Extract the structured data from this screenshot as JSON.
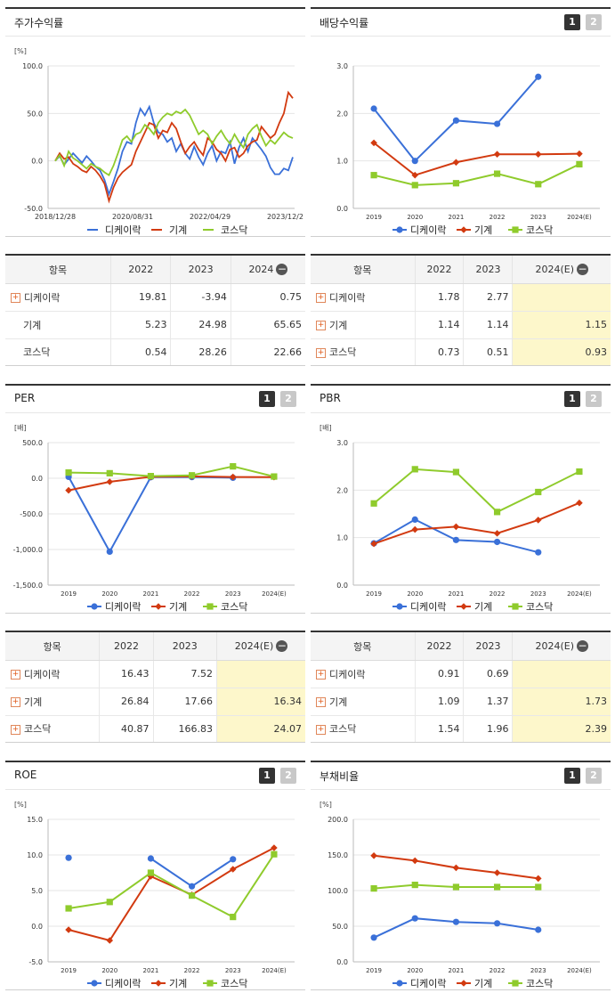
{
  "legend": [
    "디케이락",
    "기계",
    "코스닥"
  ],
  "colors": {
    "s0": "#3a70d8",
    "s1": "#d23a10",
    "s2": "#8fcb2c"
  },
  "panels": {
    "stock": {
      "title": "주가수익률"
    },
    "dividend": {
      "title": "배당수익률",
      "btn1": "1",
      "btn2": "2"
    },
    "per": {
      "title": "PER",
      "btn1": "1",
      "btn2": "2"
    },
    "pbr": {
      "title": "PBR",
      "btn1": "1",
      "btn2": "2"
    },
    "roe": {
      "title": "ROE",
      "btn1": "1",
      "btn2": "2"
    },
    "debt": {
      "title": "부채비율",
      "btn1": "1",
      "btn2": "2"
    }
  },
  "tables": {
    "stock": {
      "headers": [
        "항목",
        "2022",
        "2023",
        "2024"
      ],
      "rows": [
        {
          "name": "디케이락",
          "v": [
            "19.81",
            "-3.94",
            "0.75"
          ]
        },
        {
          "name": "기계",
          "v": [
            "5.23",
            "24.98",
            "65.65"
          ]
        },
        {
          "name": "코스닥",
          "v": [
            "0.54",
            "28.26",
            "22.66"
          ]
        }
      ]
    },
    "dividend": {
      "headers": [
        "항목",
        "2022",
        "2023",
        "2024(E)"
      ],
      "rows": [
        {
          "name": "디케이락",
          "v": [
            "1.78",
            "2.77",
            ""
          ]
        },
        {
          "name": "기계",
          "v": [
            "1.14",
            "1.14",
            "1.15"
          ]
        },
        {
          "name": "코스닥",
          "v": [
            "0.73",
            "0.51",
            "0.93"
          ]
        }
      ]
    },
    "per": {
      "headers": [
        "항목",
        "2022",
        "2023",
        "2024(E)"
      ],
      "rows": [
        {
          "name": "디케이락",
          "v": [
            "16.43",
            "7.52",
            ""
          ]
        },
        {
          "name": "기계",
          "v": [
            "26.84",
            "17.66",
            "16.34"
          ]
        },
        {
          "name": "코스닥",
          "v": [
            "40.87",
            "166.83",
            "24.07"
          ]
        }
      ]
    },
    "pbr": {
      "headers": [
        "항목",
        "2022",
        "2023",
        "2024(E)"
      ],
      "rows": [
        {
          "name": "디케이락",
          "v": [
            "0.91",
            "0.69",
            ""
          ]
        },
        {
          "name": "기계",
          "v": [
            "1.09",
            "1.37",
            "1.73"
          ]
        },
        {
          "name": "코스닥",
          "v": [
            "1.54",
            "1.96",
            "2.39"
          ]
        }
      ]
    }
  },
  "chart_data": [
    {
      "id": "stock",
      "type": "line",
      "unit": "[%]",
      "x_ticks": [
        "2018/12/28",
        "2020/08/31",
        "2022/04/29",
        "2023/12/28"
      ],
      "ylim": [
        -50,
        100
      ],
      "yticks": [
        "100.0",
        "50.0",
        "0.0",
        "-50.0"
      ],
      "series": [
        {
          "name": "디케이락",
          "values": [
            0,
            5,
            -4,
            2,
            8,
            3,
            -2,
            5,
            0,
            -6,
            -10,
            -20,
            -35,
            -22,
            -8,
            10,
            20,
            18,
            40,
            55,
            48,
            57,
            40,
            30,
            28,
            20,
            24,
            10,
            18,
            8,
            2,
            15,
            4,
            -4,
            8,
            16,
            0,
            10,
            8,
            20,
            -3,
            14,
            24,
            10,
            24,
            18,
            12,
            5,
            -7,
            -14,
            -14,
            -8,
            -10,
            4
          ]
        },
        {
          "name": "기계",
          "values": [
            0,
            8,
            2,
            4,
            -3,
            -6,
            -10,
            -12,
            -6,
            -10,
            -16,
            -24,
            -42,
            -28,
            -18,
            -12,
            -8,
            -4,
            10,
            20,
            30,
            40,
            38,
            24,
            32,
            30,
            40,
            34,
            20,
            8,
            15,
            20,
            12,
            6,
            24,
            20,
            12,
            8,
            0,
            12,
            14,
            4,
            8,
            16,
            20,
            22,
            36,
            30,
            24,
            28,
            40,
            50,
            72,
            66
          ]
        },
        {
          "name": "코스닥",
          "values": [
            0,
            6,
            -5,
            10,
            3,
            0,
            -4,
            -8,
            -3,
            -6,
            -8,
            -12,
            -15,
            -5,
            8,
            22,
            26,
            20,
            28,
            30,
            38,
            34,
            28,
            40,
            46,
            50,
            48,
            52,
            50,
            54,
            48,
            38,
            28,
            32,
            28,
            18,
            26,
            32,
            24,
            18,
            28,
            20,
            14,
            28,
            34,
            38,
            26,
            16,
            22,
            18,
            24,
            30,
            26,
            24
          ]
        }
      ]
    },
    {
      "id": "dividend",
      "type": "line",
      "unit": "",
      "categories": [
        "2019",
        "2020",
        "2021",
        "2022",
        "2023",
        "2024(E)"
      ],
      "ylim": [
        0,
        3
      ],
      "yticks": [
        "3.0",
        "2.0",
        "1.0",
        "0.0"
      ],
      "series": [
        {
          "name": "디케이락",
          "values": [
            2.1,
            1.0,
            1.85,
            1.78,
            2.77,
            null
          ]
        },
        {
          "name": "기계",
          "values": [
            1.38,
            0.7,
            0.97,
            1.14,
            1.14,
            1.15
          ]
        },
        {
          "name": "코스닥",
          "values": [
            0.7,
            0.49,
            0.53,
            0.73,
            0.51,
            0.93
          ]
        }
      ]
    },
    {
      "id": "per",
      "type": "line",
      "unit": "[배]",
      "categories": [
        "2019",
        "2020",
        "2021",
        "2022",
        "2023",
        "2024(E)"
      ],
      "ylim": [
        -1500,
        500
      ],
      "yticks": [
        "500.0",
        "0.0",
        "-500.0",
        "-1,000.0",
        "-1,500.0"
      ],
      "series": [
        {
          "name": "디케이락",
          "values": [
            20,
            -1030,
            15,
            16.43,
            7.52,
            null
          ]
        },
        {
          "name": "기계",
          "values": [
            -170,
            -50,
            20,
            26.84,
            17.66,
            16.34
          ]
        },
        {
          "name": "코스닥",
          "values": [
            80,
            70,
            30,
            40.87,
            166.83,
            24.07
          ]
        }
      ]
    },
    {
      "id": "pbr",
      "type": "line",
      "unit": "[배]",
      "categories": [
        "2019",
        "2020",
        "2021",
        "2022",
        "2023",
        "2024(E)"
      ],
      "ylim": [
        0,
        3
      ],
      "yticks": [
        "3.0",
        "2.0",
        "1.0",
        "0.0"
      ],
      "series": [
        {
          "name": "디케이락",
          "values": [
            0.88,
            1.38,
            0.95,
            0.91,
            0.69,
            null
          ]
        },
        {
          "name": "기계",
          "values": [
            0.87,
            1.17,
            1.23,
            1.09,
            1.37,
            1.73
          ]
        },
        {
          "name": "코스닥",
          "values": [
            1.72,
            2.44,
            2.38,
            1.54,
            1.96,
            2.39
          ]
        }
      ]
    },
    {
      "id": "roe",
      "type": "line",
      "unit": "[%]",
      "categories": [
        "2019",
        "2020",
        "2021",
        "2022",
        "2023",
        "2024(E)"
      ],
      "ylim": [
        -5,
        15
      ],
      "yticks": [
        "15.0",
        "10.0",
        "5.0",
        "0.0",
        "-5.0"
      ],
      "series": [
        {
          "name": "디케이락",
          "values": [
            9.6,
            null,
            9.5,
            5.6,
            9.4,
            null
          ]
        },
        {
          "name": "기계",
          "values": [
            -0.5,
            -2.0,
            7.0,
            4.4,
            8.0,
            11.0
          ]
        },
        {
          "name": "코스닥",
          "values": [
            2.5,
            3.4,
            7.5,
            4.3,
            1.3,
            10.1
          ]
        }
      ]
    },
    {
      "id": "debt",
      "type": "line",
      "unit": "[%]",
      "categories": [
        "2019",
        "2020",
        "2021",
        "2022",
        "2023",
        "2024(E)"
      ],
      "ylim": [
        0,
        200
      ],
      "yticks": [
        "200.0",
        "150.0",
        "100.0",
        "50.0",
        "0.0"
      ],
      "series": [
        {
          "name": "디케이락",
          "values": [
            34,
            61,
            56,
            54,
            45,
            null
          ]
        },
        {
          "name": "기계",
          "values": [
            149,
            142,
            132,
            125,
            117,
            null
          ]
        },
        {
          "name": "코스닥",
          "values": [
            103,
            108,
            105,
            105,
            105,
            null
          ]
        }
      ]
    }
  ]
}
